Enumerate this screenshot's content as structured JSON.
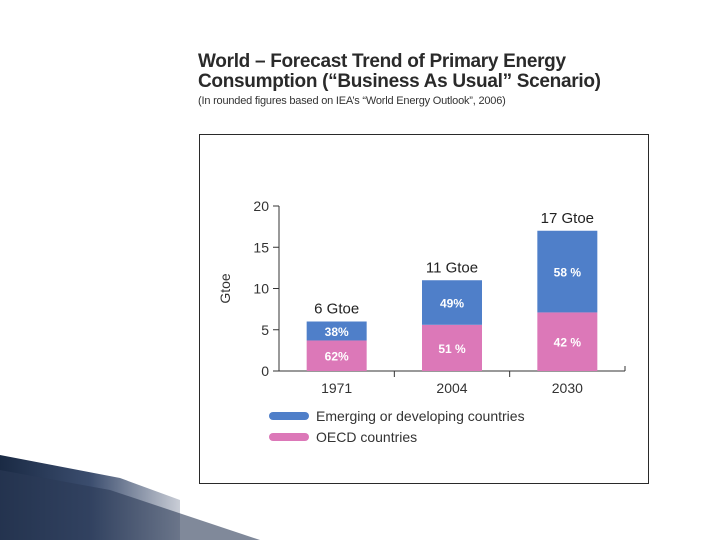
{
  "slide": {
    "title_line1": "World – Forecast Trend of Primary Energy",
    "title_line2": "Consumption (“Business As Usual” Scenario)",
    "subtitle": "(In rounded figures based on IEA’s “World Energy Outlook”, 2006)"
  },
  "colors": {
    "emerging": "#4f7fc9",
    "oecd": "#dc78b8",
    "axis": "#333333",
    "frame": "#2a2a2a"
  },
  "chart_data": {
    "type": "bar",
    "stacked": true,
    "title": "",
    "xlabel": "",
    "ylabel": "Gtoe",
    "ylim": [
      0,
      20
    ],
    "yticks": [
      "0",
      "5",
      "10",
      "15",
      "20"
    ],
    "grid": false,
    "legend_position": "bottom",
    "categories": [
      "1971",
      "2004",
      "2030"
    ],
    "totals": [
      6,
      11,
      17
    ],
    "total_labels": [
      "6 Gtoe",
      "11 Gtoe",
      "17 Gtoe"
    ],
    "series": [
      {
        "name": "OECD countries",
        "values": [
          3.7,
          5.6,
          7.1
        ],
        "labels": [
          "62%",
          "51 %",
          "42 %"
        ]
      },
      {
        "name": "Emerging or developing countries",
        "values": [
          2.3,
          5.4,
          9.9
        ],
        "labels": [
          "38%",
          "49%",
          "58 %"
        ]
      }
    ]
  }
}
